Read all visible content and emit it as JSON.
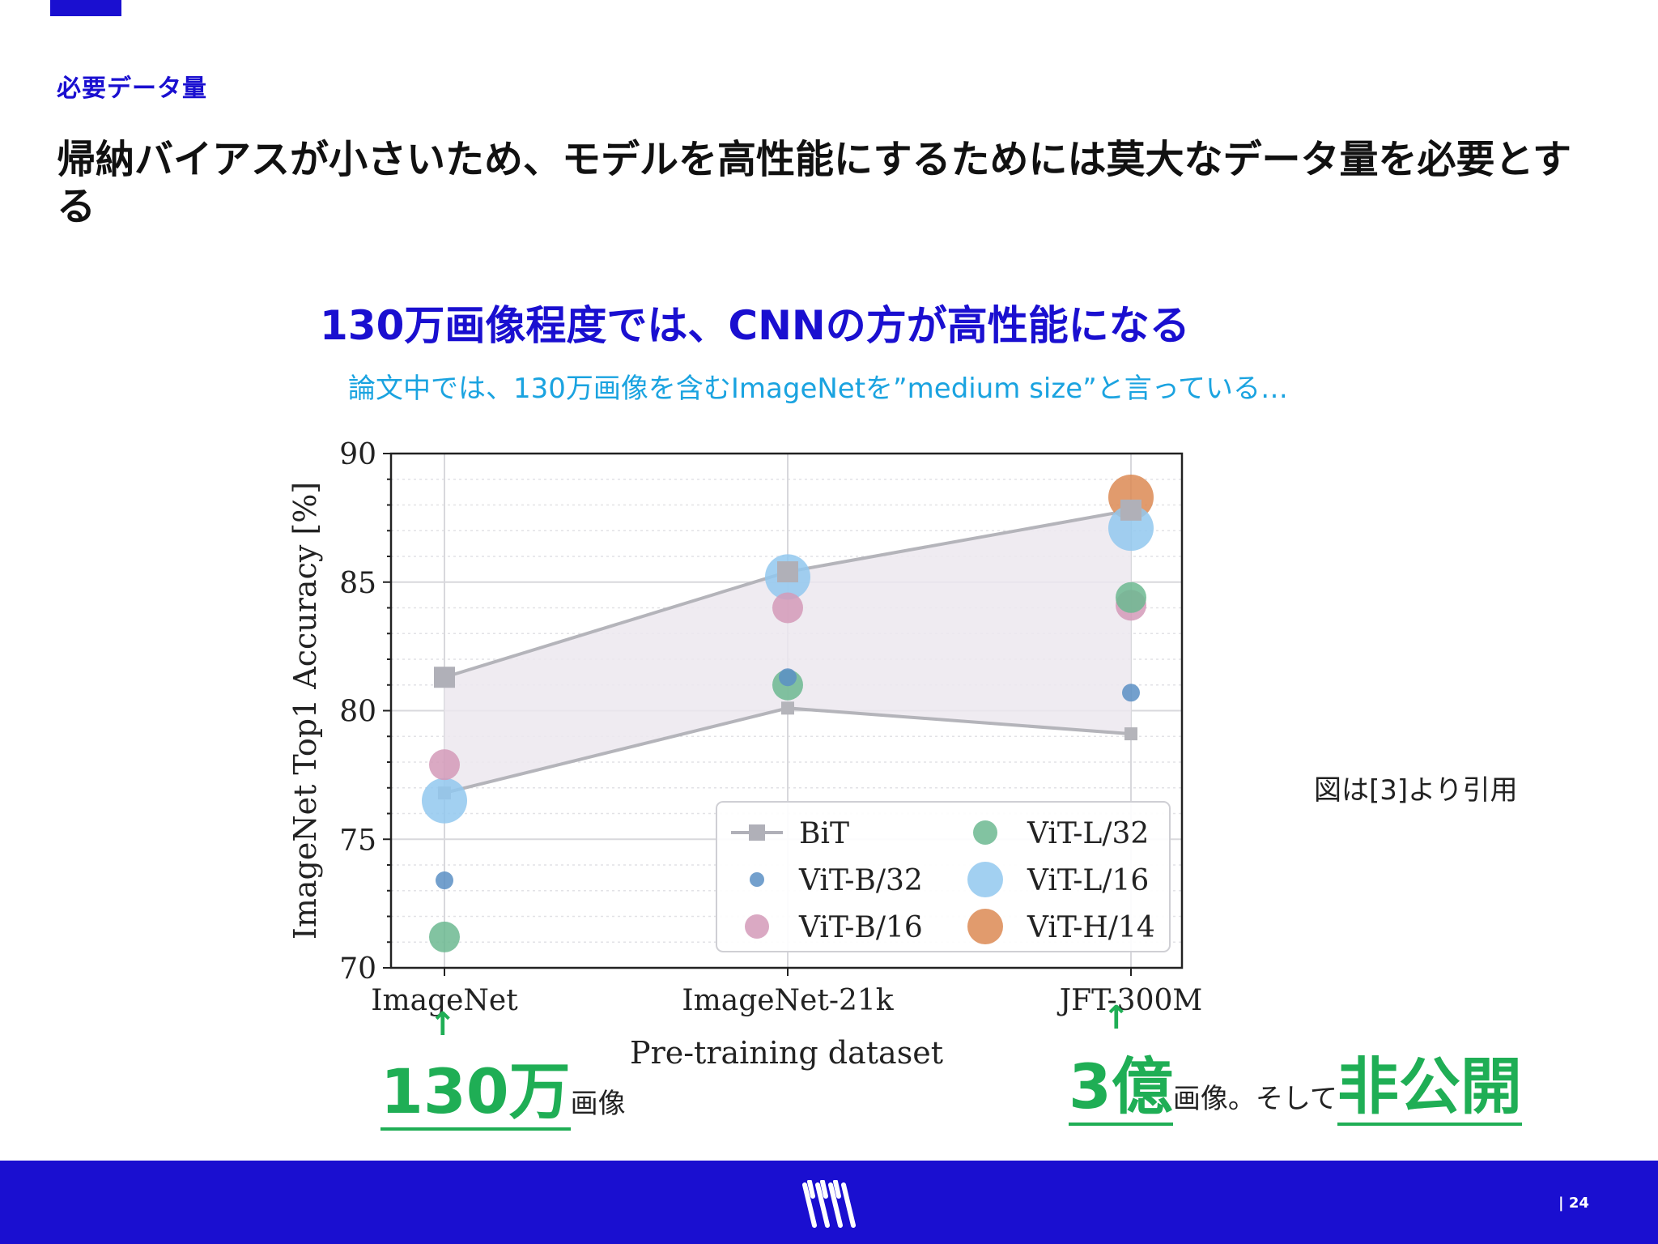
{
  "slide": {
    "section_label": "必要データ量",
    "main_heading": "帰納バイアスが小さいため、モデルを高性能にするためには莫大なデータ量を必要とする",
    "sub_heading": "130万画像程度では、CNNの方が高性能になる",
    "note": "論文中では、130万画像を含むImageNetを”medium size”と言っている…",
    "citation": "図は[3]より引用",
    "callout_left": {
      "big": "130万",
      "small": "画像"
    },
    "callout_right": {
      "big": "3億",
      "small": "画像。そして",
      "big2": "非公開"
    },
    "arrow_glyph": "↑",
    "page_number": "| 24"
  },
  "colors": {
    "brand_blue": "#1a0fd0",
    "accent_green": "#1fae55",
    "note_cyan": "#1aa3e0"
  },
  "chart_data": {
    "type": "scatter",
    "xlabel": "Pre-training dataset",
    "ylabel": "ImageNet Top1 Accuracy [%]",
    "categories": [
      "ImageNet",
      "ImageNet-21k",
      "JFT-300M"
    ],
    "ylim": [
      70,
      90
    ],
    "yticks": [
      70,
      75,
      80,
      85,
      90
    ],
    "grid": true,
    "legend_position": "bottom-right",
    "bit_band": {
      "name": "BiT",
      "upper": [
        81.3,
        85.4,
        87.8
      ],
      "lower": [
        76.8,
        80.1,
        79.1
      ]
    },
    "series": [
      {
        "name": "BiT",
        "marker": "square",
        "color": "#b0b0b8",
        "values": [
          81.3,
          85.4,
          87.8
        ]
      },
      {
        "name": "ViT-B/32",
        "marker": "circle",
        "size": 1,
        "color": "#5b8fc4",
        "values": [
          73.4,
          81.3,
          80.7
        ]
      },
      {
        "name": "ViT-B/16",
        "marker": "circle",
        "size": 2,
        "color": "#d49ab8",
        "values": [
          77.9,
          84.0,
          84.1
        ]
      },
      {
        "name": "ViT-L/32",
        "marker": "circle",
        "size": 2,
        "color": "#6cb890",
        "values": [
          71.2,
          81.0,
          84.4
        ]
      },
      {
        "name": "ViT-L/16",
        "marker": "circle",
        "size": 3,
        "color": "#92c8ee",
        "values": [
          76.5,
          85.2,
          87.1
        ]
      },
      {
        "name": "ViT-H/14",
        "marker": "circle",
        "size": 3,
        "color": "#dc8a54",
        "values": [
          null,
          null,
          88.3
        ]
      }
    ]
  }
}
